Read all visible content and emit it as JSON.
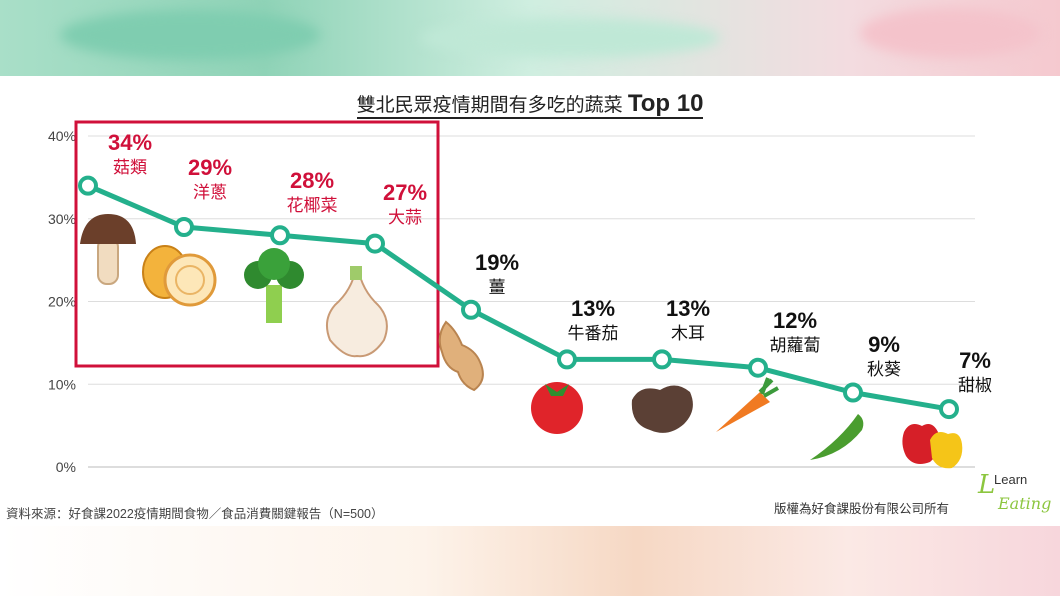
{
  "chart_data": {
    "type": "line",
    "title": "雙北民眾疫情期間有多吃的蔬菜",
    "title_suffix": "Top 10",
    "y_ticks": [
      "0%",
      "10%",
      "20%",
      "30%",
      "40%"
    ],
    "ylim": [
      0,
      40
    ],
    "grid": true,
    "categories": [
      "菇類",
      "洋蔥",
      "花椰菜",
      "大蒜",
      "薑",
      "牛番茄",
      "木耳",
      "胡蘿蔔",
      "秋葵",
      "甜椒"
    ],
    "values": [
      34,
      29,
      28,
      27,
      19,
      13,
      13,
      12,
      9,
      7
    ],
    "value_labels": [
      "34%",
      "29%",
      "28%",
      "27%",
      "19%",
      "13%",
      "13%",
      "12%",
      "9%",
      "7%"
    ],
    "highlighted_count": 4,
    "colors": {
      "line": "#24b08c",
      "highlight": "#d0103a",
      "text": "#111111",
      "grid": "#dddddd"
    }
  },
  "footer": {
    "source": "資料來源：好食課2022疫情期間食物／食品消費關鍵報告（N=500）",
    "copyright": "版權為好食課股份有限公司所有"
  },
  "logo": {
    "text_top": "Learn",
    "text_bottom": "Eating",
    "letter": "L"
  }
}
